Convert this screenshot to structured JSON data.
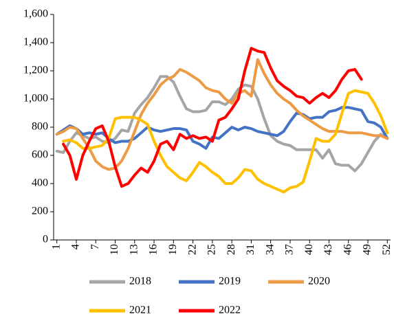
{
  "chart_data": {
    "type": "line",
    "x": [
      1,
      2,
      3,
      4,
      5,
      6,
      7,
      8,
      9,
      10,
      11,
      12,
      13,
      14,
      15,
      16,
      17,
      18,
      19,
      20,
      21,
      22,
      23,
      24,
      25,
      26,
      27,
      28,
      29,
      30,
      31,
      32,
      33,
      34,
      35,
      36,
      37,
      38,
      39,
      40,
      41,
      42,
      43,
      44,
      45,
      46,
      47,
      48,
      49,
      50,
      51,
      52
    ],
    "xlim": [
      0.5,
      52.5
    ],
    "xticks": [
      1,
      4,
      7,
      10,
      13,
      16,
      19,
      22,
      25,
      28,
      31,
      34,
      37,
      40,
      43,
      46,
      49,
      52
    ],
    "ylim": [
      0,
      1600
    ],
    "yticks": [
      0,
      200,
      400,
      600,
      800,
      {
        "value": 1000,
        "label": "1,000"
      },
      {
        "value": 1200,
        "label": "1,200"
      },
      {
        "value": 1400,
        "label": "1,400"
      },
      {
        "value": 1600,
        "label": "1,600"
      }
    ],
    "grid": false,
    "legend": "bottom",
    "series": [
      {
        "name": "2018",
        "color": "#a5a5a5",
        "values": [
          630,
          620,
          700,
          760,
          740,
          720,
          730,
          700,
          690,
          720,
          780,
          770,
          900,
          960,
          1010,
          1080,
          1160,
          1160,
          1120,
          1020,
          930,
          910,
          910,
          920,
          980,
          980,
          960,
          1000,
          1070,
          1100,
          1090,
          1000,
          860,
          740,
          700,
          680,
          670,
          640,
          640,
          640,
          640,
          580,
          640,
          540,
          530,
          530,
          490,
          540,
          620,
          700,
          750,
          720
        ]
      },
      {
        "name": "2019",
        "color": "#4472c4",
        "values": [
          750,
          780,
          810,
          790,
          750,
          760,
          750,
          760,
          720,
          690,
          700,
          700,
          720,
          760,
          800,
          780,
          770,
          780,
          790,
          790,
          780,
          700,
          680,
          650,
          730,
          720,
          760,
          800,
          780,
          800,
          790,
          770,
          760,
          750,
          740,
          770,
          840,
          900,
          890,
          860,
          870,
          870,
          910,
          920,
          940,
          940,
          930,
          920,
          840,
          830,
          800,
          720
        ]
      },
      {
        "name": "2020",
        "color": "#ed9a45",
        "values": [
          750,
          770,
          800,
          790,
          720,
          650,
          560,
          520,
          500,
          510,
          560,
          650,
          770,
          890,
          970,
          1030,
          1100,
          1140,
          1160,
          1210,
          1190,
          1160,
          1130,
          1080,
          1060,
          1050,
          1000,
          970,
          1040,
          1060,
          1020,
          1280,
          1180,
          1100,
          1040,
          1000,
          970,
          920,
          880,
          850,
          820,
          790,
          770,
          770,
          770,
          760,
          760,
          760,
          750,
          740,
          740,
          720
        ]
      },
      {
        "name": "2021",
        "color": "#ffc000",
        "values": [
          null,
          700,
          710,
          690,
          650,
          650,
          660,
          670,
          720,
          860,
          870,
          870,
          870,
          850,
          820,
          700,
          600,
          520,
          480,
          440,
          420,
          480,
          550,
          520,
          480,
          450,
          400,
          400,
          440,
          500,
          490,
          430,
          400,
          380,
          360,
          340,
          370,
          380,
          410,
          560,
          720,
          700,
          700,
          750,
          900,
          1040,
          1060,
          1050,
          1040,
          970,
          880,
          760
        ]
      },
      {
        "name": "2022",
        "color": "#ff0000",
        "values": [
          null,
          680,
          600,
          430,
          600,
          700,
          790,
          810,
          700,
          520,
          380,
          400,
          460,
          510,
          480,
          560,
          680,
          700,
          640,
          750,
          720,
          740,
          720,
          730,
          700,
          850,
          870,
          930,
          1000,
          1200,
          1360,
          1340,
          1330,
          1220,
          1130,
          1090,
          1060,
          1020,
          1010,
          970,
          1010,
          1040,
          1010,
          1060,
          1140,
          1200,
          1210,
          1140,
          null,
          null,
          null,
          null
        ]
      }
    ]
  }
}
